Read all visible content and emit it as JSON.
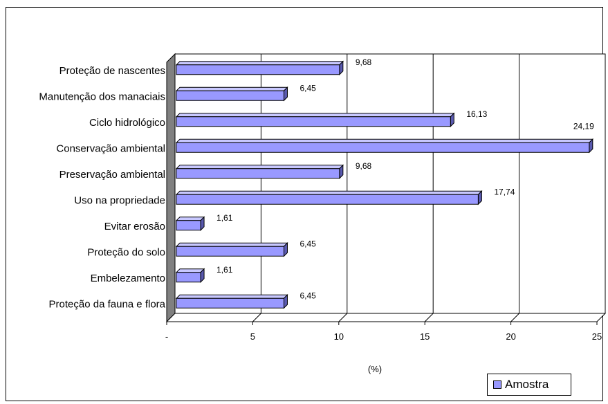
{
  "chart_data": {
    "type": "bar",
    "orientation": "horizontal",
    "categories": [
      "Proteção de nascentes",
      "Manutenção dos manaciais",
      "Ciclo hidrológico",
      "Conservação ambiental",
      "Preservação ambiental",
      "Uso na propriedade",
      "Evitar erosão",
      "Proteção do solo",
      "Embelezamento",
      "Proteção da fauna e flora"
    ],
    "series": [
      {
        "name": "Amostra",
        "values": [
          9.68,
          6.45,
          16.13,
          24.19,
          9.68,
          17.74,
          1.61,
          6.45,
          1.61,
          6.45
        ],
        "labels": [
          "9,68",
          "6,45",
          "16,13",
          "24,19",
          "9,68",
          "17,74",
          "1,61",
          "6,45",
          "1,61",
          "6,45"
        ]
      }
    ],
    "xlabel": "(%)",
    "xlim": [
      0,
      25
    ],
    "xticks": [
      "-",
      "5",
      "10",
      "15",
      "20",
      "25"
    ],
    "grid": "vertical",
    "legend_position": "bottom-right",
    "bar_color": "#9999ff",
    "bar_side_color": "#5a5ab0",
    "bar_top_color": "#c8c8ff",
    "wall_color": "#808080"
  }
}
